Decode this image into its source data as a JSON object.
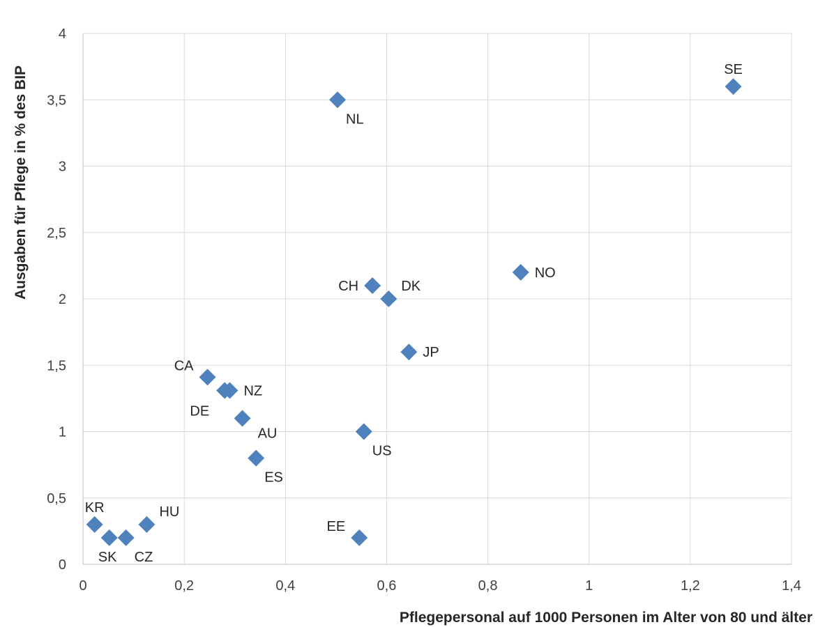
{
  "chart_data": {
    "type": "scatter",
    "xlabel": "Pflegepersonal   auf 1000 Personen im Alter von 80 und älter",
    "ylabel": "Ausgaben für Pflege in % des BIP",
    "xlim": [
      0,
      1.4
    ],
    "ylim": [
      0,
      4
    ],
    "x_ticks": [
      0,
      0.2,
      0.4,
      0.6,
      0.8,
      1,
      1.2,
      1.4
    ],
    "x_tick_labels": [
      "0",
      "0,2",
      "0,4",
      "0,6",
      "0,8",
      "1",
      "1,2",
      "1,4"
    ],
    "y_ticks": [
      0,
      0.5,
      1,
      1.5,
      2,
      2.5,
      3,
      3.5,
      4
    ],
    "y_tick_labels": [
      "0",
      "0,5",
      "1",
      "1,5",
      "2",
      "2,5",
      "3",
      "3,5",
      "4"
    ],
    "grid": true,
    "marker_color": "#4f81bd",
    "points": [
      {
        "label": "SE",
        "x": 1.285,
        "y": 3.6,
        "pos": "above"
      },
      {
        "label": "NL",
        "x": 0.503,
        "y": 3.5,
        "pos": "below-right"
      },
      {
        "label": "NO",
        "x": 0.865,
        "y": 2.2,
        "pos": "right"
      },
      {
        "label": "CH",
        "x": 0.572,
        "y": 2.1,
        "pos": "left"
      },
      {
        "label": "DK",
        "x": 0.604,
        "y": 2.0,
        "pos": "above-right"
      },
      {
        "label": "JP",
        "x": 0.644,
        "y": 1.6,
        "pos": "right"
      },
      {
        "label": "CA",
        "x": 0.246,
        "y": 1.41,
        "pos": "upper-left"
      },
      {
        "label": "DE",
        "x": 0.28,
        "y": 1.31,
        "pos": "lower-left"
      },
      {
        "label": "NZ",
        "x": 0.29,
        "y": 1.31,
        "pos": "right"
      },
      {
        "label": "AU",
        "x": 0.315,
        "y": 1.1,
        "pos": "lower-right"
      },
      {
        "label": "US",
        "x": 0.555,
        "y": 1.0,
        "pos": "below-right"
      },
      {
        "label": "ES",
        "x": 0.342,
        "y": 0.8,
        "pos": "below-right"
      },
      {
        "label": "KR",
        "x": 0.023,
        "y": 0.3,
        "pos": "above"
      },
      {
        "label": "HU",
        "x": 0.126,
        "y": 0.3,
        "pos": "above-right"
      },
      {
        "label": "SK",
        "x": 0.052,
        "y": 0.2,
        "pos": "below-left"
      },
      {
        "label": "CZ",
        "x": 0.085,
        "y": 0.2,
        "pos": "below-right"
      },
      {
        "label": "EE",
        "x": 0.546,
        "y": 0.2,
        "pos": "upper-left"
      }
    ]
  }
}
